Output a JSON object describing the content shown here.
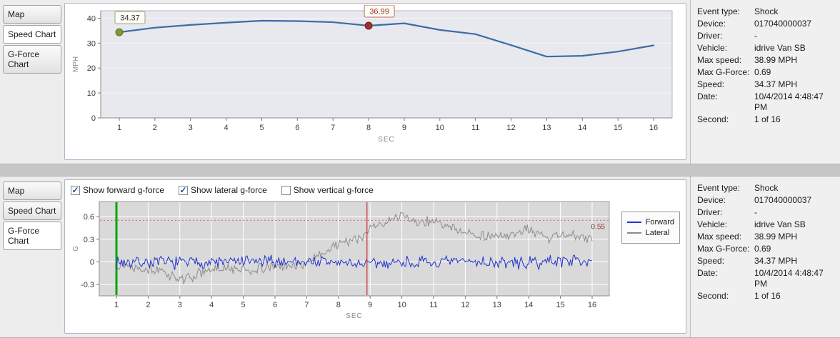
{
  "tabs": {
    "map": "Map",
    "speed": "Speed Chart",
    "gforce": "G-Force Chart"
  },
  "info": {
    "rows": [
      {
        "label": "Event type:",
        "value": "Shock"
      },
      {
        "label": "Device:",
        "value": "017040000037"
      },
      {
        "label": "Driver:",
        "value": "-"
      },
      {
        "label": "Vehicle:",
        "value": "idrive Van SB"
      },
      {
        "label": "Max speed:",
        "value": "38.99 MPH"
      },
      {
        "label": "Max G-Force:",
        "value": "0.69"
      },
      {
        "label": "Speed:",
        "value": "34.37 MPH"
      },
      {
        "label": "Date:",
        "value": "10/4/2014 4:48:47 PM"
      },
      {
        "label": "Second:",
        "value": "1 of 16"
      }
    ]
  },
  "gforce_controls": {
    "checkboxes": [
      {
        "label": "Show forward g-force",
        "checked": true
      },
      {
        "label": "Show lateral g-force",
        "checked": true
      },
      {
        "label": "Show vertical g-force",
        "checked": false
      }
    ]
  },
  "chart_data": [
    {
      "id": "speed-chart",
      "type": "line",
      "xlabel": "SEC",
      "ylabel": "MPH",
      "x": [
        1,
        2,
        3,
        4,
        5,
        6,
        7,
        8,
        9,
        10,
        11,
        12,
        13,
        14,
        15,
        16
      ],
      "values": [
        34.37,
        36.2,
        37.3,
        38.2,
        38.99,
        38.85,
        38.4,
        36.99,
        37.95,
        35.3,
        33.6,
        29.2,
        24.6,
        24.9,
        26.6,
        29.1
      ],
      "ylim": [
        0,
        43
      ],
      "yticks": [
        0,
        10,
        20,
        30,
        40
      ],
      "line_color": "#3d6da5",
      "plot_bg": "#e8e8ef",
      "plot_border": "#b6b6c2",
      "annotations": [
        {
          "x": 1,
          "value": 34.37,
          "label": "34.37",
          "marker_color": "#7d9a33",
          "marker_stroke": "#5c731f",
          "box_border": "#9aa37a",
          "text_color": "#333333"
        },
        {
          "x": 8,
          "value": 36.99,
          "label": "36.99",
          "marker_color": "#9c312c",
          "marker_stroke": "#6d1f1c",
          "box_border": "#c06a62",
          "text_color": "#a32e2e"
        }
      ]
    },
    {
      "id": "gforce-chart",
      "type": "line",
      "xlabel": "SEC",
      "ylabel": "G",
      "x_ticks": [
        1,
        2,
        3,
        4,
        5,
        6,
        7,
        8,
        9,
        10,
        11,
        12,
        13,
        14,
        15,
        16
      ],
      "ylim": [
        -0.45,
        0.8
      ],
      "yticks": [
        -0.3,
        0,
        0.3,
        0.6
      ],
      "plot_bg": "#d9d9d9",
      "plot_border": "#9c9ca4",
      "start_line": {
        "x": 1,
        "color": "#0aa40a"
      },
      "event_line": {
        "x": 8.9,
        "color": "#cc2a2a"
      },
      "threshold": {
        "value": 0.55,
        "label": "0.55",
        "color": "#d96a6a",
        "label_color": "#8b3a3a"
      },
      "series": [
        {
          "name": "Forward",
          "color": "#2233cc",
          "seed": 7,
          "noise": 0.05,
          "base": [
            [
              1,
              0
            ],
            [
              3,
              -0.01
            ],
            [
              7,
              0.01
            ],
            [
              9,
              -0.03
            ],
            [
              10,
              0
            ],
            [
              11,
              -0.02
            ],
            [
              12,
              0.01
            ],
            [
              13,
              -0.01
            ],
            [
              14,
              -0.02
            ],
            [
              15,
              0.02
            ],
            [
              16,
              0.03
            ]
          ]
        },
        {
          "name": "Lateral",
          "color": "#8c8c8c",
          "seed": 13,
          "noise": 0.04,
          "base": [
            [
              1,
              -0.02
            ],
            [
              1.6,
              -0.06
            ],
            [
              2.1,
              -0.1
            ],
            [
              2.6,
              -0.16
            ],
            [
              3,
              -0.23
            ],
            [
              3.3,
              -0.21
            ],
            [
              3.7,
              -0.14
            ],
            [
              4.2,
              -0.1
            ],
            [
              4.7,
              -0.09
            ],
            [
              5.2,
              -0.11
            ],
            [
              5.7,
              -0.08
            ],
            [
              6.2,
              -0.06
            ],
            [
              6.8,
              -0.04
            ],
            [
              7.2,
              0.03
            ],
            [
              7.6,
              0.14
            ],
            [
              8,
              0.25
            ],
            [
              8.4,
              0.29
            ],
            [
              8.8,
              0.31
            ],
            [
              9,
              0.46
            ],
            [
              9.3,
              0.5
            ],
            [
              9.7,
              0.56
            ],
            [
              10,
              0.62
            ],
            [
              10.3,
              0.57
            ],
            [
              10.6,
              0.52
            ],
            [
              11,
              0.55
            ],
            [
              11.4,
              0.47
            ],
            [
              11.8,
              0.42
            ],
            [
              12.2,
              0.37
            ],
            [
              12.7,
              0.34
            ],
            [
              13.2,
              0.33
            ],
            [
              13.7,
              0.38
            ],
            [
              14,
              0.43
            ],
            [
              14.3,
              0.36
            ],
            [
              14.6,
              0.3
            ],
            [
              14.9,
              0.36
            ],
            [
              15.3,
              0.37
            ],
            [
              15.7,
              0.32
            ],
            [
              16,
              0.29
            ]
          ]
        }
      ]
    }
  ]
}
